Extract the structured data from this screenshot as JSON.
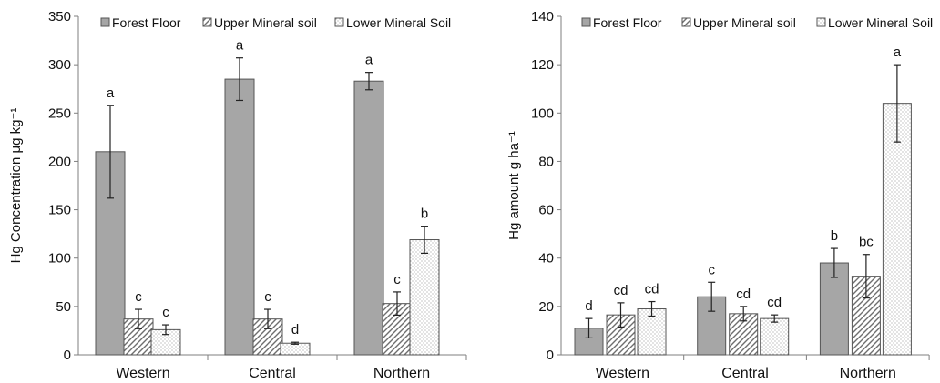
{
  "chart_data": [
    {
      "type": "bar",
      "ylabel": "Hg Concentration μg kg⁻¹",
      "ylim": [
        0,
        350
      ],
      "yticks": [
        0,
        50,
        100,
        150,
        200,
        250,
        300,
        350
      ],
      "categories": [
        "Western",
        "Central",
        "Northern"
      ],
      "legend_position": "top",
      "series": [
        {
          "name": "Forest Floor",
          "pattern": "solid-gray",
          "color": "#a6a6a6",
          "values": [
            210,
            285,
            283
          ],
          "errors": [
            48,
            22,
            9
          ],
          "labels": [
            "a",
            "a",
            "a"
          ]
        },
        {
          "name": "Upper Mineral soil",
          "pattern": "diagonal-hatch",
          "color": "#ffffff",
          "values": [
            37,
            37,
            53
          ],
          "errors": [
            10,
            10,
            12
          ],
          "labels": [
            "c",
            "c",
            "c"
          ]
        },
        {
          "name": "Lower Mineral Soil",
          "pattern": "dotted",
          "color": "#ffffff",
          "values": [
            26,
            12,
            119
          ],
          "errors": [
            5,
            1,
            14
          ],
          "labels": [
            "c",
            "d",
            "b"
          ]
        }
      ]
    },
    {
      "type": "bar",
      "ylabel": "Hg amount g ha⁻¹",
      "ylim": [
        0,
        140
      ],
      "yticks": [
        0,
        20,
        40,
        60,
        80,
        100,
        120,
        140
      ],
      "categories": [
        "Western",
        "Central",
        "Northern"
      ],
      "legend_position": "top",
      "series": [
        {
          "name": "Forest Floor",
          "pattern": "solid-gray",
          "color": "#a6a6a6",
          "values": [
            11,
            24,
            38
          ],
          "errors": [
            4,
            6,
            6
          ],
          "labels": [
            "d",
            "c",
            "b"
          ]
        },
        {
          "name": "Upper Mineral soil",
          "pattern": "diagonal-hatch",
          "color": "#ffffff",
          "values": [
            16.5,
            17,
            32.5
          ],
          "errors": [
            5,
            3,
            9
          ],
          "labels": [
            "cd",
            "cd",
            "bc"
          ]
        },
        {
          "name": "Lower Mineral Soil",
          "pattern": "dotted",
          "color": "#ffffff",
          "values": [
            19,
            15,
            104
          ],
          "errors": [
            3,
            1.5,
            16
          ],
          "labels": [
            "cd",
            "cd",
            "a"
          ]
        }
      ]
    }
  ]
}
